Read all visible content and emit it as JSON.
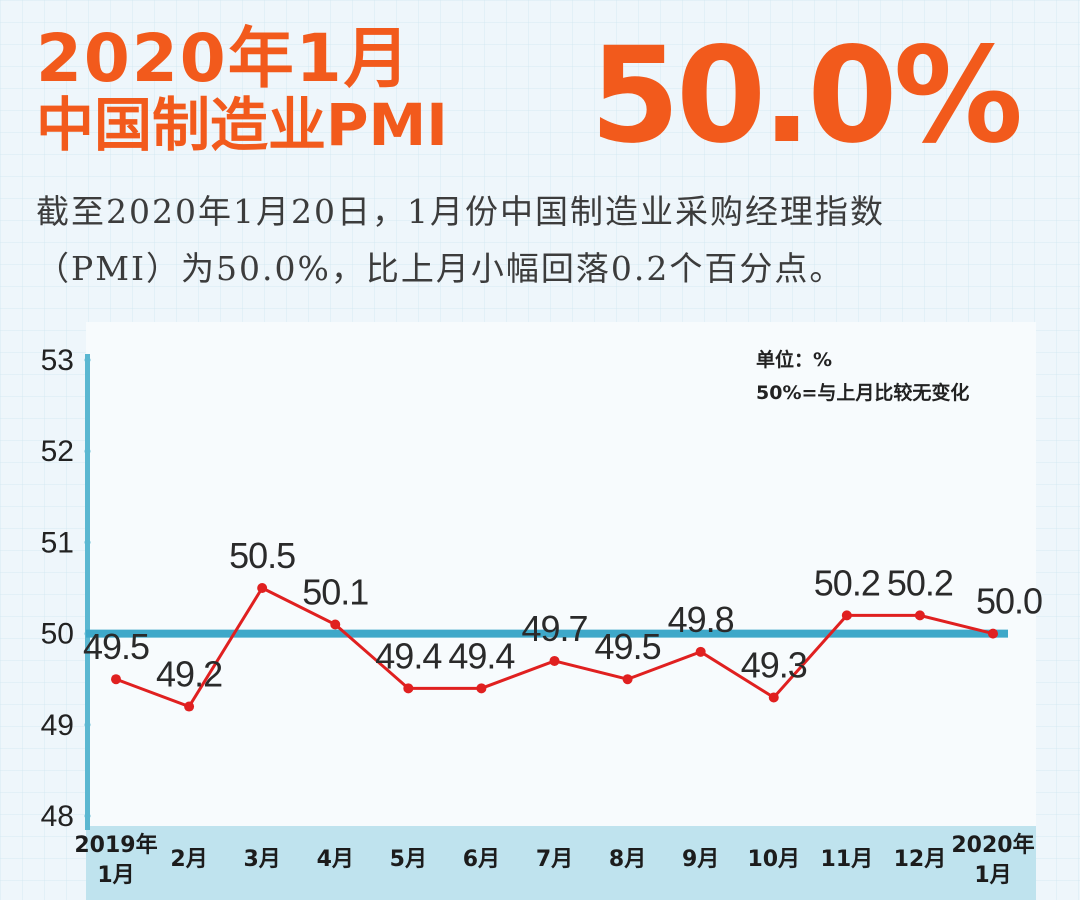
{
  "header": {
    "line1": "2020年1月",
    "line2": "中国制造业PMI",
    "big_value": "50.0%",
    "accent_color": "#f25a1c"
  },
  "description": {
    "line1": "截至2020年1月20日，1月份中国制造业采购经理指数",
    "line2": "（PMI）为50.0%，比上月小幅回落0.2个百分点。"
  },
  "chart_notes": {
    "unit": "单位：%",
    "reference": "50%=与上月比较无变化"
  },
  "chart_data": {
    "type": "line",
    "title": "",
    "xlabel": "",
    "ylabel": "",
    "ylim": [
      48,
      53
    ],
    "yticks": [
      48,
      49,
      50,
      51,
      52,
      53
    ],
    "grid": false,
    "reference_line": 50,
    "categories": [
      [
        "2019年",
        "1月"
      ],
      [
        "2月"
      ],
      [
        "3月"
      ],
      [
        "4月"
      ],
      [
        "5月"
      ],
      [
        "6月"
      ],
      [
        "7月"
      ],
      [
        "8月"
      ],
      [
        "9月"
      ],
      [
        "10月"
      ],
      [
        "11月"
      ],
      [
        "12月"
      ],
      [
        "2020年",
        "1月"
      ]
    ],
    "series": [
      {
        "values": [
          49.5,
          49.2,
          50.5,
          50.1,
          49.4,
          49.4,
          49.7,
          49.5,
          49.8,
          49.3,
          50.2,
          50.2,
          50.0
        ],
        "labels": [
          "49.5",
          "49.2",
          "50.5",
          "50.1",
          "49.4",
          "49.4",
          "49.7",
          "49.5",
          "49.8",
          "49.3",
          "50.2",
          "50.2",
          "50.0"
        ],
        "color": "#e02020"
      }
    ],
    "axis_color": "#5ab7d1",
    "reference_color": "#3ea8c9"
  }
}
